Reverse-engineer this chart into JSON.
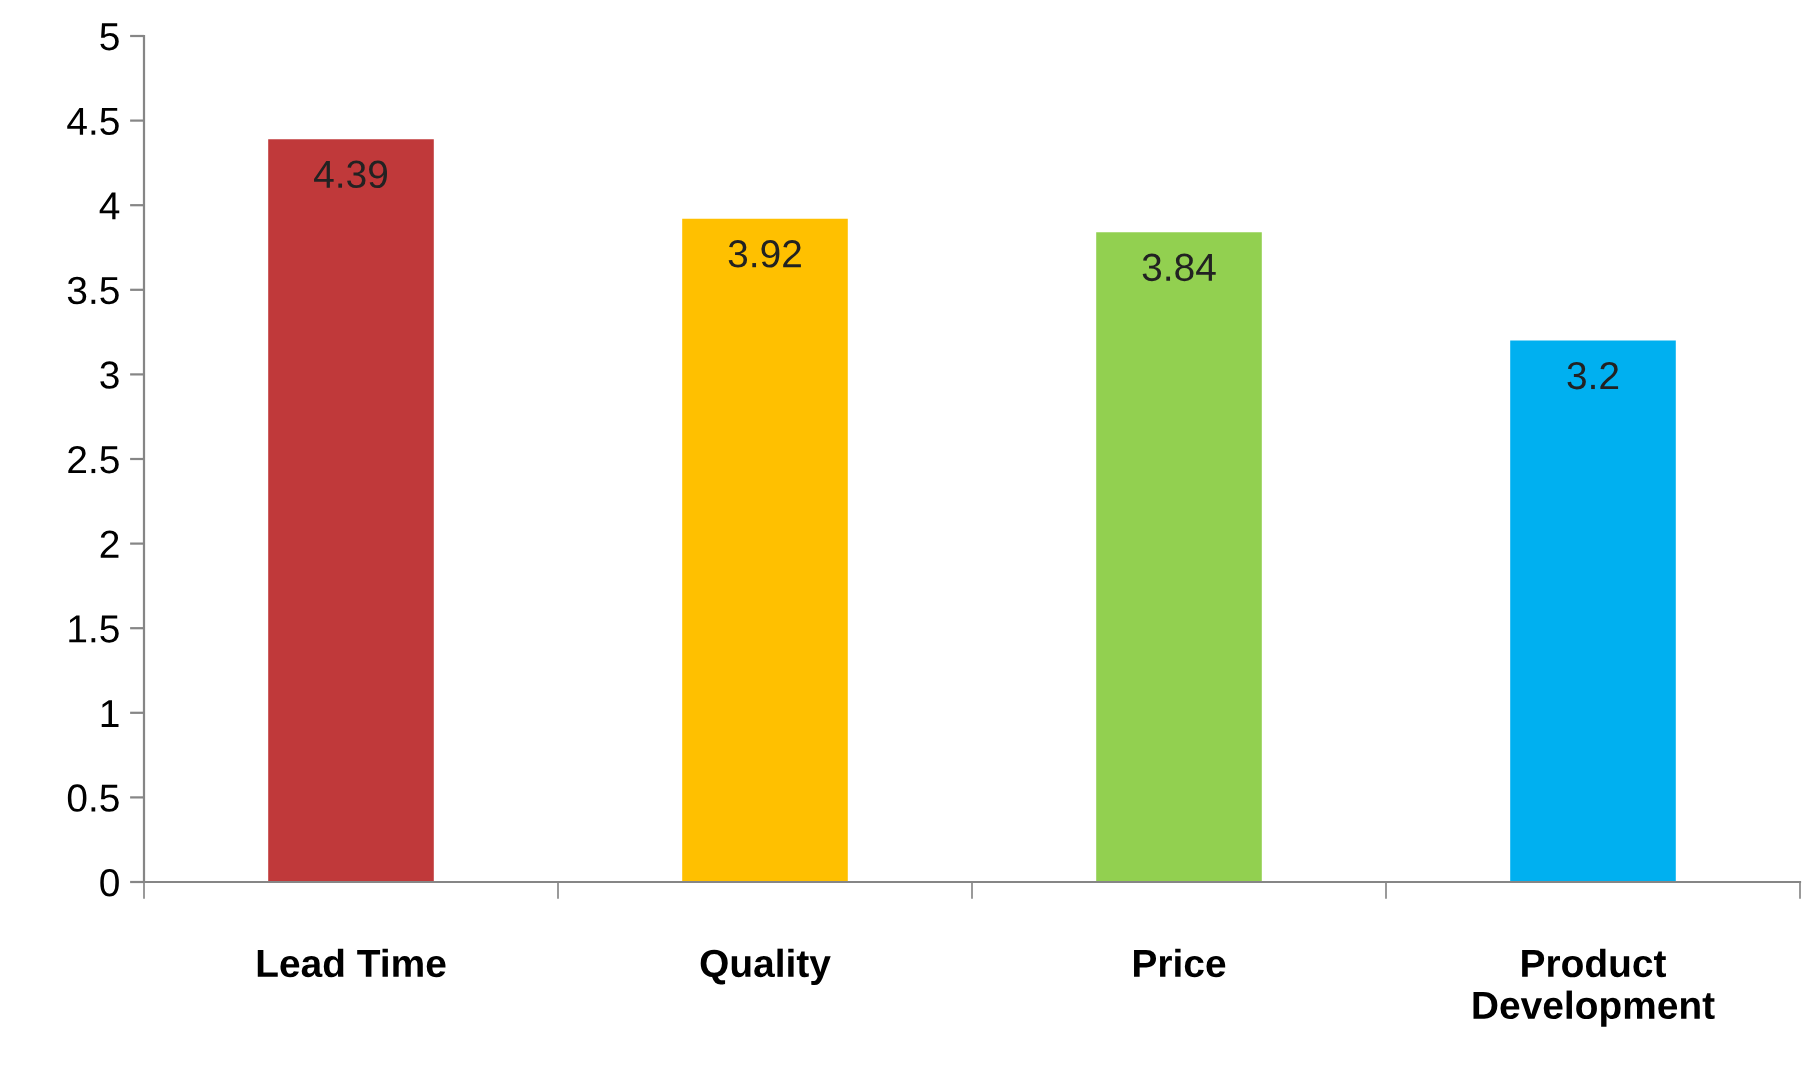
{
  "chart_data": {
    "type": "bar",
    "categories": [
      "Lead Time",
      "Quality",
      "Price",
      "Product\nDevelopment"
    ],
    "values": [
      4.39,
      3.92,
      3.84,
      3.2
    ],
    "colors": [
      "#c0393a",
      "#ffc000",
      "#92d050",
      "#00b0f0"
    ],
    "ylim": [
      0,
      5
    ],
    "yticks": [
      0,
      0.5,
      1,
      1.5,
      2,
      2.5,
      3,
      3.5,
      4,
      4.5,
      5
    ],
    "grid": false,
    "data_labels": true
  }
}
